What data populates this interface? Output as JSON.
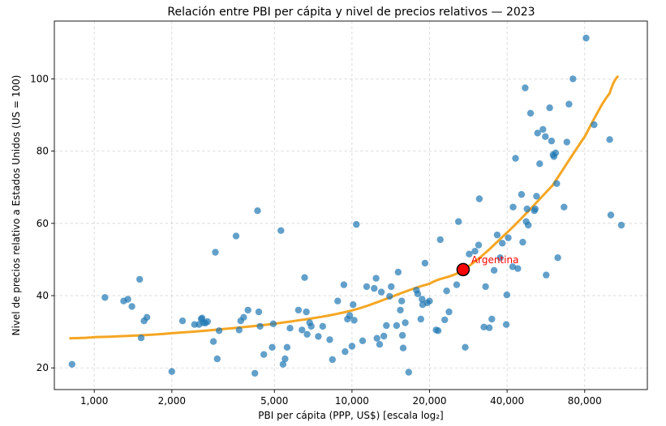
{
  "chart_data": {
    "type": "scatter",
    "title": "Relación entre PBI per cápita y nivel de precios relativos — 2023",
    "xlabel": "PBI per cápita (PPP, US$) [escala log₂]",
    "ylabel": "Nivel de precios relativo a Estados Unidos  (US = 100)",
    "x_scale": "log2",
    "xlim": [
      700,
      140000
    ],
    "ylim": [
      14,
      116
    ],
    "x_ticks": [
      1000,
      2000,
      5000,
      10000,
      20000,
      40000,
      80000
    ],
    "x_tick_labels": [
      "1,000",
      "2,000",
      "5,000",
      "10,000",
      "20,000",
      "40,000",
      "80,000"
    ],
    "y_ticks": [
      20,
      40,
      60,
      80,
      100
    ],
    "y_tick_labels": [
      "20",
      "40",
      "60",
      "80",
      "100"
    ],
    "grid": true,
    "colors": {
      "points": "#1f77b4",
      "fit": "#f5a623",
      "highlight": "#ff0000"
    },
    "points": [
      [
        820,
        21
      ],
      [
        1100,
        39.5
      ],
      [
        1300,
        38.5
      ],
      [
        1350,
        39
      ],
      [
        1400,
        37
      ],
      [
        1500,
        44.5
      ],
      [
        1520,
        28.3
      ],
      [
        1560,
        33
      ],
      [
        1600,
        34
      ],
      [
        2000,
        19
      ],
      [
        2200,
        33
      ],
      [
        2450,
        32
      ],
      [
        2550,
        32
      ],
      [
        2600,
        33.5
      ],
      [
        2620,
        33.8
      ],
      [
        2650,
        32.5
      ],
      [
        2700,
        32.4
      ],
      [
        2750,
        32.8
      ],
      [
        2900,
        27.3
      ],
      [
        2950,
        52
      ],
      [
        3000,
        22.5
      ],
      [
        3050,
        30.3
      ],
      [
        3550,
        56.5
      ],
      [
        3650,
        30.5
      ],
      [
        3700,
        33
      ],
      [
        3800,
        34
      ],
      [
        3950,
        36
      ],
      [
        4200,
        18.5
      ],
      [
        4300,
        63.5
      ],
      [
        4350,
        35.5
      ],
      [
        4400,
        31.5
      ],
      [
        4550,
        23.7
      ],
      [
        4900,
        25.7
      ],
      [
        4950,
        32.2
      ],
      [
        5300,
        58
      ],
      [
        5400,
        21
      ],
      [
        5500,
        22.5
      ],
      [
        5600,
        25.7
      ],
      [
        5750,
        31
      ],
      [
        6200,
        36
      ],
      [
        6400,
        30.5
      ],
      [
        6550,
        45
      ],
      [
        6650,
        35.5
      ],
      [
        6700,
        29.3
      ],
      [
        6850,
        32.5
      ],
      [
        6950,
        31.5
      ],
      [
        7400,
        28.7
      ],
      [
        7700,
        31.5
      ],
      [
        8200,
        27.8
      ],
      [
        8400,
        22.3
      ],
      [
        8800,
        38.5
      ],
      [
        9300,
        43
      ],
      [
        9400,
        24.5
      ],
      [
        9600,
        33.5
      ],
      [
        9800,
        34.5
      ],
      [
        10000,
        26
      ],
      [
        10100,
        37.5
      ],
      [
        10200,
        33.2
      ],
      [
        10400,
        59.7
      ],
      [
        11000,
        27.5
      ],
      [
        11400,
        42.5
      ],
      [
        12200,
        42
      ],
      [
        12400,
        44.8
      ],
      [
        12500,
        28.2
      ],
      [
        12800,
        26.5
      ],
      [
        13000,
        41
      ],
      [
        13300,
        28.8
      ],
      [
        13600,
        31.7
      ],
      [
        14000,
        39.8
      ],
      [
        14200,
        42.5
      ],
      [
        14900,
        31.7
      ],
      [
        15100,
        46.5
      ],
      [
        15400,
        36
      ],
      [
        15600,
        38.5
      ],
      [
        15700,
        29
      ],
      [
        15800,
        25.5
      ],
      [
        16100,
        32.5
      ],
      [
        16600,
        18.8
      ],
      [
        17800,
        41.5
      ],
      [
        18000,
        40.5
      ],
      [
        18500,
        33.5
      ],
      [
        18700,
        39
      ],
      [
        18800,
        37.5
      ],
      [
        19200,
        49
      ],
      [
        19600,
        38
      ],
      [
        20000,
        38.5
      ],
      [
        21200,
        30.5
      ],
      [
        21600,
        30.3
      ],
      [
        22000,
        55.5
      ],
      [
        22900,
        33.3
      ],
      [
        23300,
        41.3
      ],
      [
        23800,
        35.5
      ],
      [
        25500,
        43
      ],
      [
        25900,
        60.5
      ],
      [
        27500,
        25.7
      ],
      [
        28500,
        51.5
      ],
      [
        30000,
        52.3
      ],
      [
        31000,
        54
      ],
      [
        31200,
        66.8
      ],
      [
        32500,
        31.3
      ],
      [
        33000,
        42.5
      ],
      [
        34100,
        31.1
      ],
      [
        34900,
        33.5
      ],
      [
        35600,
        47
      ],
      [
        36600,
        56.8
      ],
      [
        37600,
        50.5
      ],
      [
        38300,
        54.5
      ],
      [
        39700,
        32
      ],
      [
        39900,
        40.2
      ],
      [
        40400,
        56
      ],
      [
        42000,
        48
      ],
      [
        42200,
        64.5
      ],
      [
        43100,
        78
      ],
      [
        44000,
        47.5
      ],
      [
        45500,
        68
      ],
      [
        46000,
        54.8
      ],
      [
        47000,
        97.5
      ],
      [
        47400,
        60.5
      ],
      [
        47800,
        64
      ],
      [
        48300,
        59.5
      ],
      [
        49300,
        90.5
      ],
      [
        51000,
        63.5
      ],
      [
        51400,
        64
      ],
      [
        52000,
        67.5
      ],
      [
        52500,
        85
      ],
      [
        53500,
        76.5
      ],
      [
        55100,
        86
      ],
      [
        56300,
        84
      ],
      [
        56700,
        45.7
      ],
      [
        58500,
        92
      ],
      [
        59500,
        82.8
      ],
      [
        60300,
        79
      ],
      [
        60800,
        78.5
      ],
      [
        61700,
        79.5
      ],
      [
        62300,
        71
      ],
      [
        62900,
        50.5
      ],
      [
        66500,
        64.5
      ],
      [
        68200,
        82.5
      ],
      [
        69500,
        93
      ],
      [
        72000,
        100
      ],
      [
        81000,
        111.3
      ],
      [
        87000,
        87.3
      ],
      [
        100000,
        83.2
      ],
      [
        101000,
        62.3
      ],
      [
        111000,
        59.5
      ]
    ],
    "fit_curve": [
      [
        800,
        28.2
      ],
      [
        1000,
        28.5
      ],
      [
        2000,
        29.6
      ],
      [
        5000,
        32.2
      ],
      [
        10000,
        35.9
      ],
      [
        20000,
        43.3
      ],
      [
        27000,
        47.2
      ],
      [
        40000,
        57.5
      ],
      [
        60000,
        70.5
      ],
      [
        80000,
        84
      ],
      [
        100000,
        96
      ],
      [
        108000,
        100.8
      ]
    ],
    "highlight": {
      "label": "Argentina",
      "x": 27000,
      "y": 47.2
    }
  }
}
